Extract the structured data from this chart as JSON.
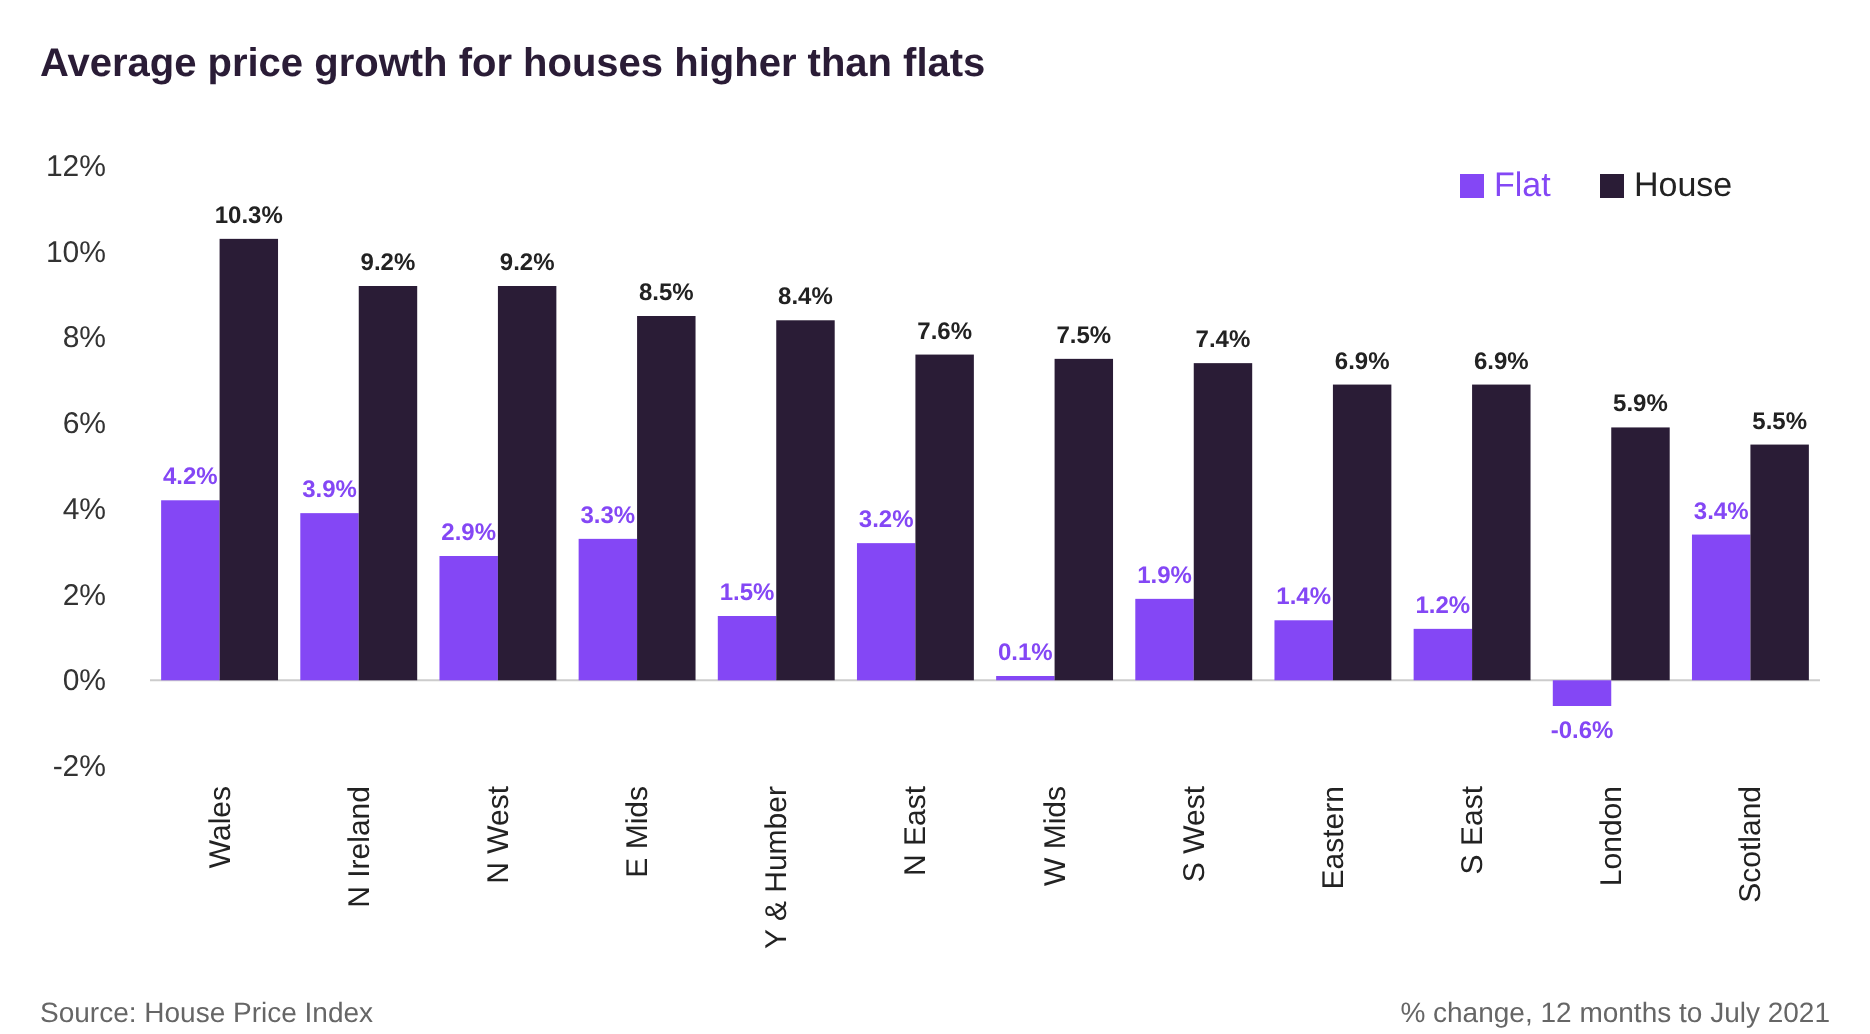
{
  "chart_data": {
    "type": "bar",
    "title": "Average price growth for houses higher than flats",
    "categories": [
      "Wales",
      "N Ireland",
      "N West",
      "E Mids",
      "Y & Humber",
      "N East",
      "W Mids",
      "S West",
      "Eastern",
      "S East",
      "London",
      "Scotland"
    ],
    "series": [
      {
        "name": "Flat",
        "color": "#8447f5",
        "values": [
          4.2,
          3.9,
          2.9,
          3.3,
          1.5,
          3.2,
          0.1,
          1.9,
          1.4,
          1.2,
          -0.6,
          3.4
        ],
        "value_labels": [
          "4.2%",
          "3.9%",
          "2.9%",
          "3.3%",
          "1.5%",
          "3.2%",
          "0.1%",
          "1.9%",
          "1.4%",
          "1.2%",
          "-0.6%",
          "3.4%"
        ]
      },
      {
        "name": "House",
        "color": "#2a1c36",
        "values": [
          10.3,
          9.2,
          9.2,
          8.5,
          8.4,
          7.6,
          7.5,
          7.4,
          6.9,
          6.9,
          5.9,
          5.5
        ],
        "value_labels": [
          "10.3%",
          "9.2%",
          "9.2%",
          "8.5%",
          "8.4%",
          "7.6%",
          "7.5%",
          "7.4%",
          "6.9%",
          "6.9%",
          "5.9%",
          "5.5%"
        ]
      }
    ],
    "ylim": [
      -2,
      12
    ],
    "yticks": [
      {
        "value": -2,
        "label": "-2%"
      },
      {
        "value": 0,
        "label": "0%"
      },
      {
        "value": 2,
        "label": "2%"
      },
      {
        "value": 4,
        "label": "4%"
      },
      {
        "value": 6,
        "label": "6%"
      },
      {
        "value": 8,
        "label": "8%"
      },
      {
        "value": 10,
        "label": "10%"
      },
      {
        "value": 12,
        "label": "12%"
      }
    ],
    "legend": "top right",
    "annotations": [
      "Source: House Price Index",
      "% change, 12 months to July 2021"
    ]
  }
}
